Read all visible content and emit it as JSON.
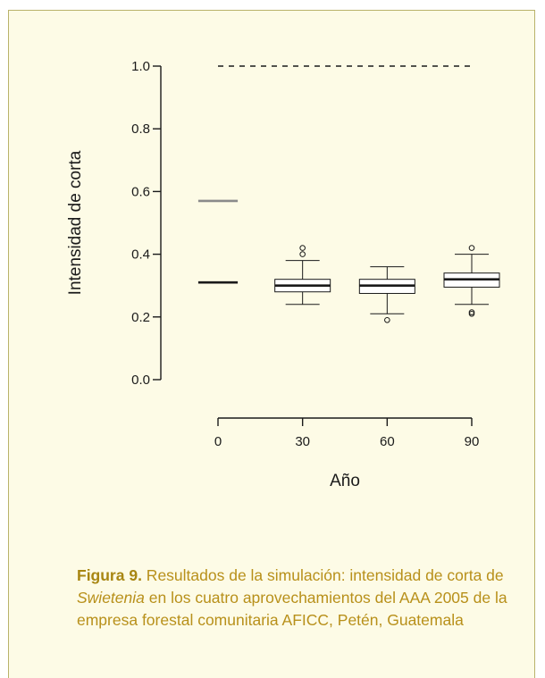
{
  "chart_data": {
    "type": "box",
    "ylabel": "Intensidad de corta",
    "xlabel": "Año",
    "ylim": [
      0.0,
      1.0
    ],
    "y_ticks": [
      "0.0",
      "0.2",
      "0.4",
      "0.6",
      "0.8",
      "1.0"
    ],
    "x_ticks": [
      "0",
      "30",
      "60",
      "90"
    ],
    "reference_lines": [
      {
        "y": 1.0,
        "x_from": 0,
        "x_to": 90,
        "style": "dashed",
        "color": "#1a1a1a"
      },
      {
        "y": 0.57,
        "x_from": -7,
        "x_to": 7,
        "style": "solid",
        "color": "#8a8a8a"
      },
      {
        "y": 0.31,
        "x_from": -7,
        "x_to": 7,
        "style": "solid",
        "color": "#1a1a1a"
      }
    ],
    "boxes": [
      {
        "x": 30,
        "whisker_low": 0.24,
        "q1": 0.28,
        "median": 0.3,
        "q3": 0.32,
        "whisker_high": 0.38,
        "outliers": [
          0.4,
          0.42
        ]
      },
      {
        "x": 60,
        "whisker_low": 0.21,
        "q1": 0.275,
        "median": 0.3,
        "q3": 0.32,
        "whisker_high": 0.36,
        "outliers": [
          0.19
        ]
      },
      {
        "x": 90,
        "whisker_low": 0.24,
        "q1": 0.295,
        "median": 0.32,
        "q3": 0.34,
        "whisker_high": 0.4,
        "outliers": [
          0.42,
          0.21,
          0.215
        ]
      }
    ]
  },
  "caption": {
    "lead": "Figura 9.",
    "text_before": " Resultados de la simulación: intensidad de corta de ",
    "italic": "Swietenia",
    "text_after": " en los cuatro aprovechamientos del AAA 2005 de la empresa forestal comunitaria AFICC, Petén, Guatemala"
  },
  "colors": {
    "caption": "#b8901a",
    "panel_bg": "#fdfbe6",
    "panel_border": "#b9b26a"
  }
}
